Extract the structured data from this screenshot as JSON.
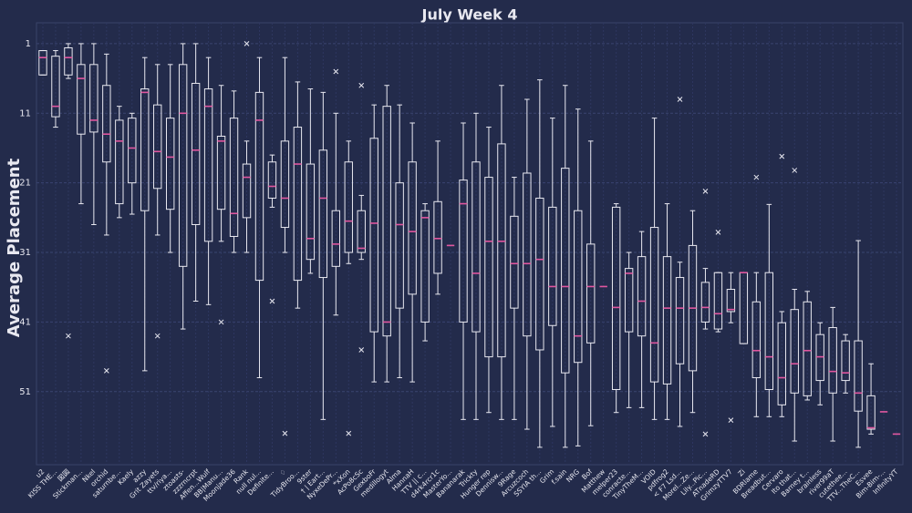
{
  "chart_data": {
    "type": "box",
    "title": "July Week 4",
    "ylabel": "Average Placement",
    "categories": [
      "u2",
      "KISS THE...",
      "図図",
      "Stickman...",
      "Nkel",
      "orchid",
      "saturnbe...",
      "Kaely",
      "azzy",
      "Grit Zayets",
      "ttv/riya...",
      "ztoasts-",
      "zzzrncrpt",
      "Affen...Wulf",
      "BB|Manu...",
      "Moonjade36",
      "Rank",
      "null nul...",
      "Definite...",
      "♢",
      "TidyBroo...",
      "9ster",
      "† | Eart...",
      "NyxeDePr...",
      "*xXon",
      "AcPo8cSc",
      "GexboFr",
      "medillogyt",
      "Alma",
      "HannaH",
      "TTV || c...",
      "d4rk4rcr1c",
      "MasterYo...",
      "Bananarak",
      "Trickty",
      "Hunger rep",
      "Dennisw...",
      "9Rage",
      "Arcuzcoch",
      "SSYIA th...",
      "Grim",
      "f.sain",
      "NRG",
      "Bof",
      "Matthew",
      "melper23",
      "conracte...",
      "TinyTheM...",
      "VOID",
      "pdfrog2",
      "< F7 Lsd...",
      "Morel...Ze...",
      "Lily...Pic...",
      "ATnadeRD",
      "GrimzyTTV7",
      "Zi",
      "BDRlame",
      "Breadbut...",
      "Cervaro",
      "Ito that...",
      "Barney t...",
      "brainless",
      "river99aT",
      "cutethee...",
      "TTV...TheC...",
      "Esvee",
      "Bim-Bim-...",
      "InfinityYT"
    ],
    "min": [
      2,
      2,
      1,
      1,
      1,
      2.5,
      10,
      11,
      3,
      4,
      4,
      1,
      1,
      3,
      7,
      7.8,
      15,
      3,
      17,
      3,
      6.5,
      7.5,
      8,
      11,
      15,
      22.8,
      9.8,
      7,
      9.8,
      12.4,
      24,
      15,
      30,
      12.4,
      11,
      13,
      7,
      20.2,
      9,
      6.2,
      11.7,
      7,
      10.4,
      15,
      35.9,
      24,
      31,
      28,
      11.7,
      24,
      32.4,
      25,
      33.3,
      33.9,
      33.9,
      33.9,
      33.9,
      24.1,
      39.5,
      36.3,
      36.6,
      41.1,
      38.9,
      42.8,
      29.3,
      47,
      53.9,
      57.1
    ],
    "q1": [
      2,
      2.8,
      1.6,
      4,
      4,
      7,
      12,
      11.7,
      7.5,
      9.8,
      11.7,
      4,
      6.7,
      7.5,
      14.3,
      11.7,
      18.3,
      8,
      18,
      15,
      13,
      18.3,
      16.3,
      25,
      18,
      25,
      14.6,
      10,
      21,
      18,
      25,
      23.7,
      30,
      20.6,
      18,
      20.2,
      15.4,
      25.8,
      19.6,
      23.2,
      24.5,
      18.9,
      25,
      29.8,
      35.9,
      24.5,
      33.3,
      31.6,
      27.4,
      31.6,
      34.6,
      30,
      35.3,
      33.9,
      36.3,
      33.9,
      38.1,
      33.9,
      41.1,
      39.2,
      38.1,
      42.8,
      41.8,
      43.7,
      43.7,
      51.6,
      53.9,
      57.1
    ],
    "median": [
      3,
      10,
      3,
      6,
      12,
      14,
      15,
      16,
      8,
      16.5,
      17.3,
      11,
      16.3,
      10,
      15,
      25.4,
      20.2,
      12,
      21.5,
      23.2,
      18.3,
      29,
      23.2,
      29.8,
      26.5,
      30.4,
      26.8,
      41,
      27,
      28,
      26,
      29,
      30,
      24,
      34,
      29.4,
      29.4,
      32.6,
      32.6,
      32,
      35.9,
      35.9,
      43,
      35.9,
      35.9,
      38.9,
      34,
      38,
      44,
      39,
      39,
      39,
      38.9,
      39.8,
      39.2,
      33.9,
      45.1,
      46,
      49,
      47,
      45.1,
      46,
      48.1,
      48.3,
      51.2,
      56.2,
      53.9,
      57.1
    ],
    "q3": [
      5.5,
      11.5,
      5.5,
      14,
      13.7,
      18,
      24,
      21,
      25,
      21.8,
      24.8,
      33,
      27,
      29.4,
      24.8,
      28.7,
      26,
      35,
      23.2,
      27.4,
      35,
      32,
      34.6,
      33,
      31,
      31,
      42.4,
      43,
      39,
      37,
      41,
      34,
      30,
      41,
      42.4,
      46,
      46,
      39,
      43,
      45,
      41.5,
      48.3,
      46.8,
      44,
      35.9,
      50.7,
      42.4,
      43,
      49.6,
      49.9,
      47,
      48,
      41,
      42,
      39.5,
      44.1,
      49,
      50.7,
      52.9,
      51.2,
      51.6,
      49.4,
      51.2,
      49.4,
      53.8,
      56.4,
      53.9,
      57.1
    ],
    "max": [
      5.5,
      13,
      6,
      24,
      27,
      28.5,
      26,
      25.5,
      48,
      28.5,
      31,
      42,
      38,
      38.5,
      29.4,
      31,
      31,
      49,
      24.5,
      31,
      39,
      34,
      55,
      40,
      32.6,
      32,
      49.6,
      49.6,
      49,
      49.6,
      43.7,
      37,
      30,
      55,
      55,
      54,
      55,
      55,
      56.4,
      59,
      56,
      59,
      58.8,
      55.9,
      35.9,
      54,
      53.3,
      53.3,
      55,
      55,
      56,
      54,
      42,
      42.4,
      41.1,
      44.1,
      54.6,
      54.6,
      54.6,
      58.1,
      52.2,
      52.9,
      58.1,
      51.2,
      59,
      57.1,
      53.9,
      57.1
    ],
    "outliers": [
      [],
      [],
      [
        43
      ],
      [],
      [],
      [
        48
      ],
      [],
      [],
      [],
      [
        43
      ],
      [],
      [],
      [],
      [],
      [
        41
      ],
      [],
      [
        1
      ],
      [],
      [
        38
      ],
      [
        57
      ],
      [],
      [],
      [],
      [
        5
      ],
      [
        57
      ],
      [
        7,
        45
      ],
      [],
      [],
      [],
      [],
      [],
      [],
      [],
      [],
      [],
      [],
      [],
      [],
      [],
      [],
      [],
      [],
      [],
      [],
      [],
      [],
      [],
      [],
      [],
      [],
      [
        9
      ],
      [],
      [
        22.2,
        57.1
      ],
      [
        28.1
      ],
      [
        55.1
      ],
      [],
      [
        20.2
      ],
      [],
      [
        17.2
      ],
      [
        19.2
      ],
      [],
      [],
      [],
      [],
      [],
      [],
      [],
      []
    ],
    "ylim": [
      -2,
      61.5
    ],
    "invert_y": true,
    "yticks": [
      1,
      11,
      21,
      31,
      41,
      51
    ],
    "grid": true,
    "box_color": "#e8e8f0",
    "median_color": "#e0569f",
    "background": "#232b4b"
  }
}
